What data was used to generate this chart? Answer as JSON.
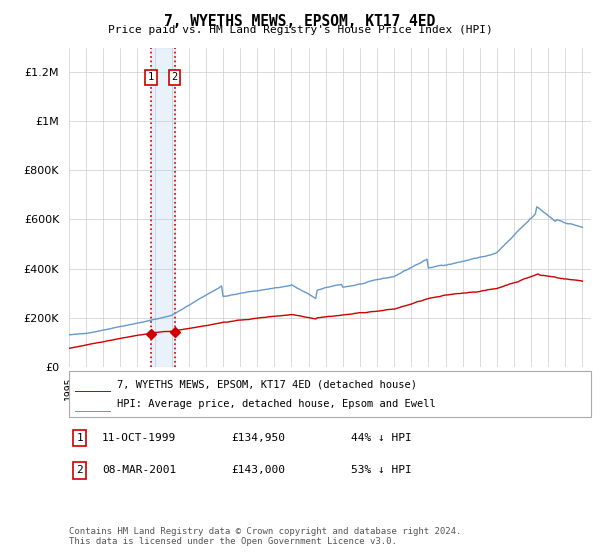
{
  "title": "7, WYETHS MEWS, EPSOM, KT17 4ED",
  "subtitle": "Price paid vs. HM Land Registry's House Price Index (HPI)",
  "ylim": [
    0,
    1300000
  ],
  "yticks": [
    0,
    200000,
    400000,
    600000,
    800000,
    1000000,
    1200000
  ],
  "hpi_color": "#6699cc",
  "price_color": "#cc0000",
  "legend_label_price": "7, WYETHS MEWS, EPSOM, KT17 4ED (detached house)",
  "legend_label_hpi": "HPI: Average price, detached house, Epsom and Ewell",
  "transaction1_date": "11-OCT-1999",
  "transaction1_price": 134950,
  "transaction1_hpi_pct": "44% ↓ HPI",
  "transaction1_year": 1999.79,
  "transaction2_date": "08-MAR-2001",
  "transaction2_price": 143000,
  "transaction2_hpi_pct": "53% ↓ HPI",
  "transaction2_year": 2001.17,
  "footer": "Contains HM Land Registry data © Crown copyright and database right 2024.\nThis data is licensed under the Open Government Licence v3.0.",
  "background_color": "#ffffff",
  "grid_color": "#cccccc",
  "highlight_fill": "#ddeeff"
}
